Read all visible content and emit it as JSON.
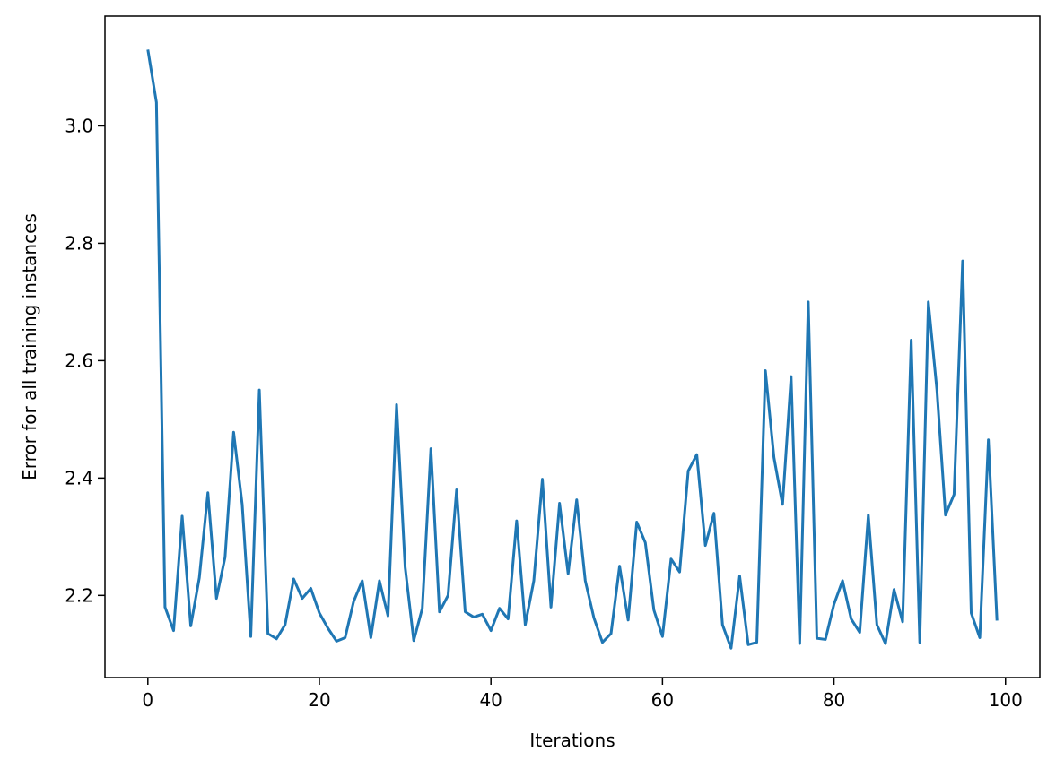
{
  "chart_data": {
    "type": "line",
    "title": "",
    "xlabel": "Iterations",
    "ylabel": "Error for all training instances",
    "xlim": [
      -5,
      104
    ],
    "ylim": [
      2.06,
      3.187
    ],
    "x_ticks": [
      0,
      20,
      40,
      60,
      80,
      100
    ],
    "x_tick_labels": [
      "0",
      "20",
      "40",
      "60",
      "80",
      "100"
    ],
    "y_ticks": [
      2.2,
      2.4,
      2.6,
      2.8,
      3.0
    ],
    "y_tick_labels": [
      "2.2",
      "2.4",
      "2.6",
      "2.8",
      "3.0"
    ],
    "grid": false,
    "series": [
      {
        "color": "#1f77b4",
        "x": [
          0,
          1,
          2,
          3,
          4,
          5,
          6,
          7,
          8,
          9,
          10,
          11,
          12,
          13,
          14,
          15,
          16,
          17,
          18,
          19,
          20,
          21,
          22,
          23,
          24,
          25,
          26,
          27,
          28,
          29,
          30,
          31,
          32,
          33,
          34,
          35,
          36,
          37,
          38,
          39,
          40,
          41,
          42,
          43,
          44,
          45,
          46,
          47,
          48,
          49,
          50,
          51,
          52,
          53,
          54,
          55,
          56,
          57,
          58,
          59,
          60,
          61,
          62,
          63,
          64,
          65,
          66,
          67,
          68,
          69,
          70,
          71,
          72,
          73,
          74,
          75,
          76,
          77,
          78,
          79,
          80,
          81,
          82,
          83,
          84,
          85,
          86,
          87,
          88,
          89,
          90,
          91,
          92,
          93,
          94,
          95,
          96,
          97,
          98,
          99
        ],
        "values": [
          3.13,
          3.04,
          2.18,
          2.14,
          2.335,
          2.148,
          2.23,
          2.375,
          2.195,
          2.265,
          2.478,
          2.355,
          2.13,
          2.55,
          2.135,
          2.126,
          2.15,
          2.228,
          2.195,
          2.212,
          2.17,
          2.144,
          2.122,
          2.128,
          2.19,
          2.225,
          2.128,
          2.225,
          2.165,
          2.525,
          2.248,
          2.123,
          2.178,
          2.45,
          2.172,
          2.2,
          2.38,
          2.172,
          2.163,
          2.168,
          2.14,
          2.178,
          2.16,
          2.327,
          2.15,
          2.225,
          2.398,
          2.18,
          2.357,
          2.237,
          2.363,
          2.225,
          2.162,
          2.12,
          2.135,
          2.25,
          2.158,
          2.325,
          2.29,
          2.175,
          2.13,
          2.262,
          2.24,
          2.412,
          2.44,
          2.285,
          2.34,
          2.15,
          2.11,
          2.233,
          2.116,
          2.12,
          2.583,
          2.435,
          2.355,
          2.573,
          2.118,
          2.7,
          2.127,
          2.125,
          2.185,
          2.225,
          2.16,
          2.137,
          2.337,
          2.15,
          2.118,
          2.21,
          2.155,
          2.635,
          2.12,
          2.7,
          2.55,
          2.337,
          2.372,
          2.77,
          2.17,
          2.128,
          2.465,
          2.157
        ]
      }
    ]
  }
}
